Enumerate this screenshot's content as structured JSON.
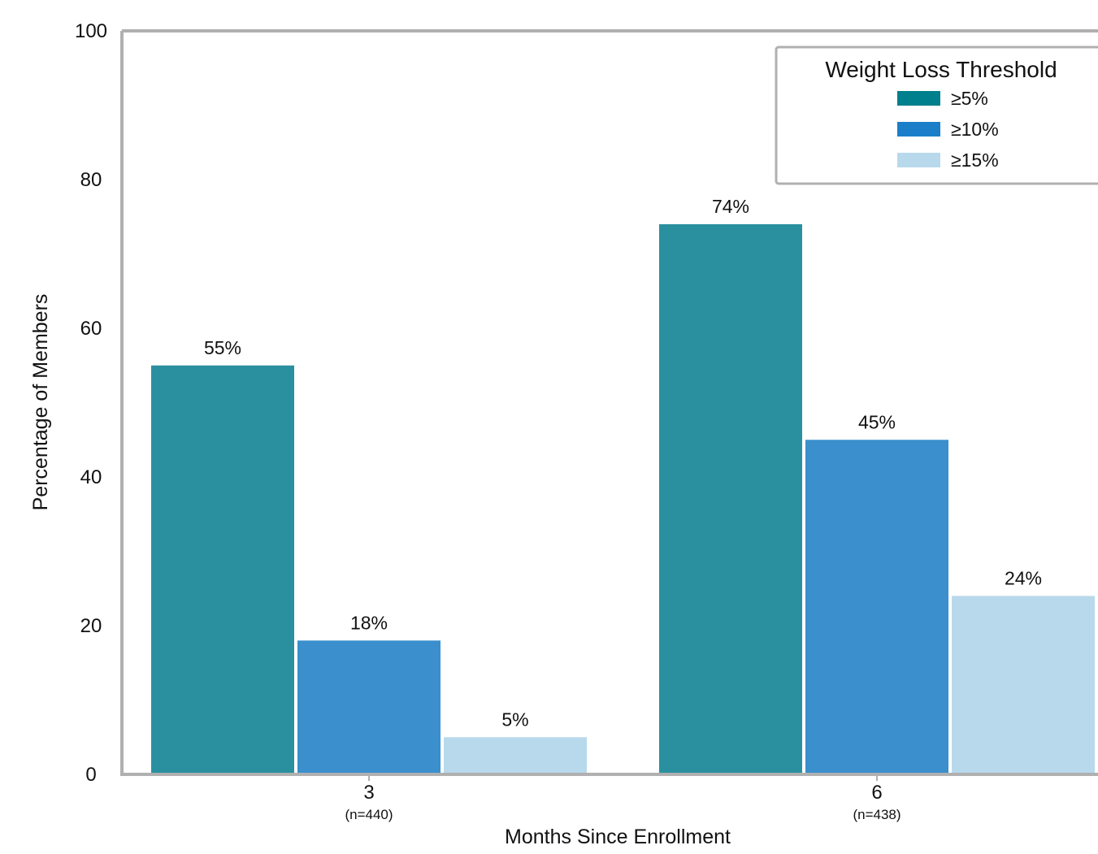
{
  "chart_data": {
    "type": "bar",
    "categories": [
      "3",
      "6"
    ],
    "category_sublabels": [
      "(n=440)",
      "(n=438)"
    ],
    "series": [
      {
        "name": "≥5%",
        "values": [
          55,
          74
        ],
        "labels": [
          "55%",
          "74%"
        ],
        "color": "#2a909f"
      },
      {
        "name": "≥10%",
        "values": [
          18,
          45
        ],
        "labels": [
          "18%",
          "45%"
        ],
        "color": "#3a8fcc"
      },
      {
        "name": "≥15%",
        "values": [
          5,
          24
        ],
        "labels": [
          "5%",
          "24%"
        ],
        "color": "#b8d9ec"
      }
    ],
    "legend_colors": [
      "#007f8c",
      "#1a7fc8",
      "#b8d9ec"
    ],
    "xlabel": "Months Since Enrollment",
    "ylabel": "Percentage of Members",
    "ylim": [
      0,
      100
    ],
    "yticks": [
      0,
      20,
      40,
      60,
      80,
      100
    ],
    "grid": false,
    "legend": {
      "title": "Weight Loss Threshold",
      "placement": "top-right"
    },
    "axis_color": "#b0b0b0"
  }
}
